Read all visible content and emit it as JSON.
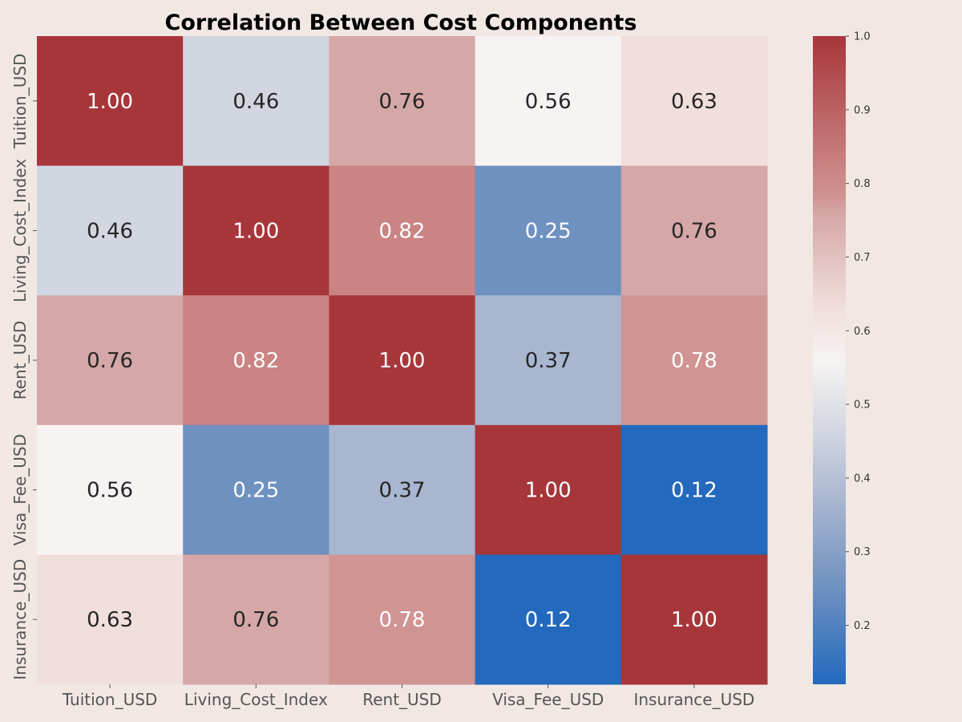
{
  "background_color": "#f1e8e4",
  "chart_data": {
    "type": "heatmap",
    "title": "Correlation Between Cost Components",
    "xlabel": "",
    "ylabel": "",
    "x_categories": [
      "Tuition_USD",
      "Living_Cost_Index",
      "Rent_USD",
      "Visa_Fee_USD",
      "Insurance_USD"
    ],
    "y_categories": [
      "Tuition_USD",
      "Living_Cost_Index",
      "Rent_USD",
      "Visa_Fee_USD",
      "Insurance_USD"
    ],
    "values": [
      [
        1.0,
        0.46,
        0.76,
        0.56,
        0.63
      ],
      [
        0.46,
        1.0,
        0.82,
        0.25,
        0.76
      ],
      [
        0.76,
        0.82,
        1.0,
        0.37,
        0.78
      ],
      [
        0.56,
        0.25,
        0.37,
        1.0,
        0.12
      ],
      [
        0.63,
        0.76,
        0.78,
        0.12,
        1.0
      ]
    ],
    "value_format": "2 decimals",
    "colormap": "vlag",
    "color_stops": [
      {
        "value": 0.12,
        "color": "#2369bd"
      },
      {
        "value": 0.25,
        "color": "#6e91c0"
      },
      {
        "value": 0.37,
        "color": "#a9b6d0"
      },
      {
        "value": 0.46,
        "color": "#d1d6e1"
      },
      {
        "value": 0.56,
        "color": "#f7f3f2"
      },
      {
        "value": 0.63,
        "color": "#f1dfdd"
      },
      {
        "value": 0.76,
        "color": "#d5a7a6"
      },
      {
        "value": 0.78,
        "color": "#d09492"
      },
      {
        "value": 0.82,
        "color": "#c98483"
      },
      {
        "value": 1.0,
        "color": "#a7363a"
      }
    ],
    "colorbar": {
      "range": [
        0.12,
        1.0
      ],
      "ticks": [
        "0.2",
        "0.3",
        "0.4",
        "0.5",
        "0.6",
        "0.7",
        "0.8",
        "0.9",
        "1.0"
      ],
      "tick_values": [
        0.2,
        0.3,
        0.4,
        0.5,
        0.6,
        0.7,
        0.8,
        0.9,
        1.0
      ]
    },
    "annotation_colors": {
      "light": "#ffffff",
      "dark": "#262626"
    },
    "tick_label_color": "#555555",
    "title_color": "#000000"
  }
}
